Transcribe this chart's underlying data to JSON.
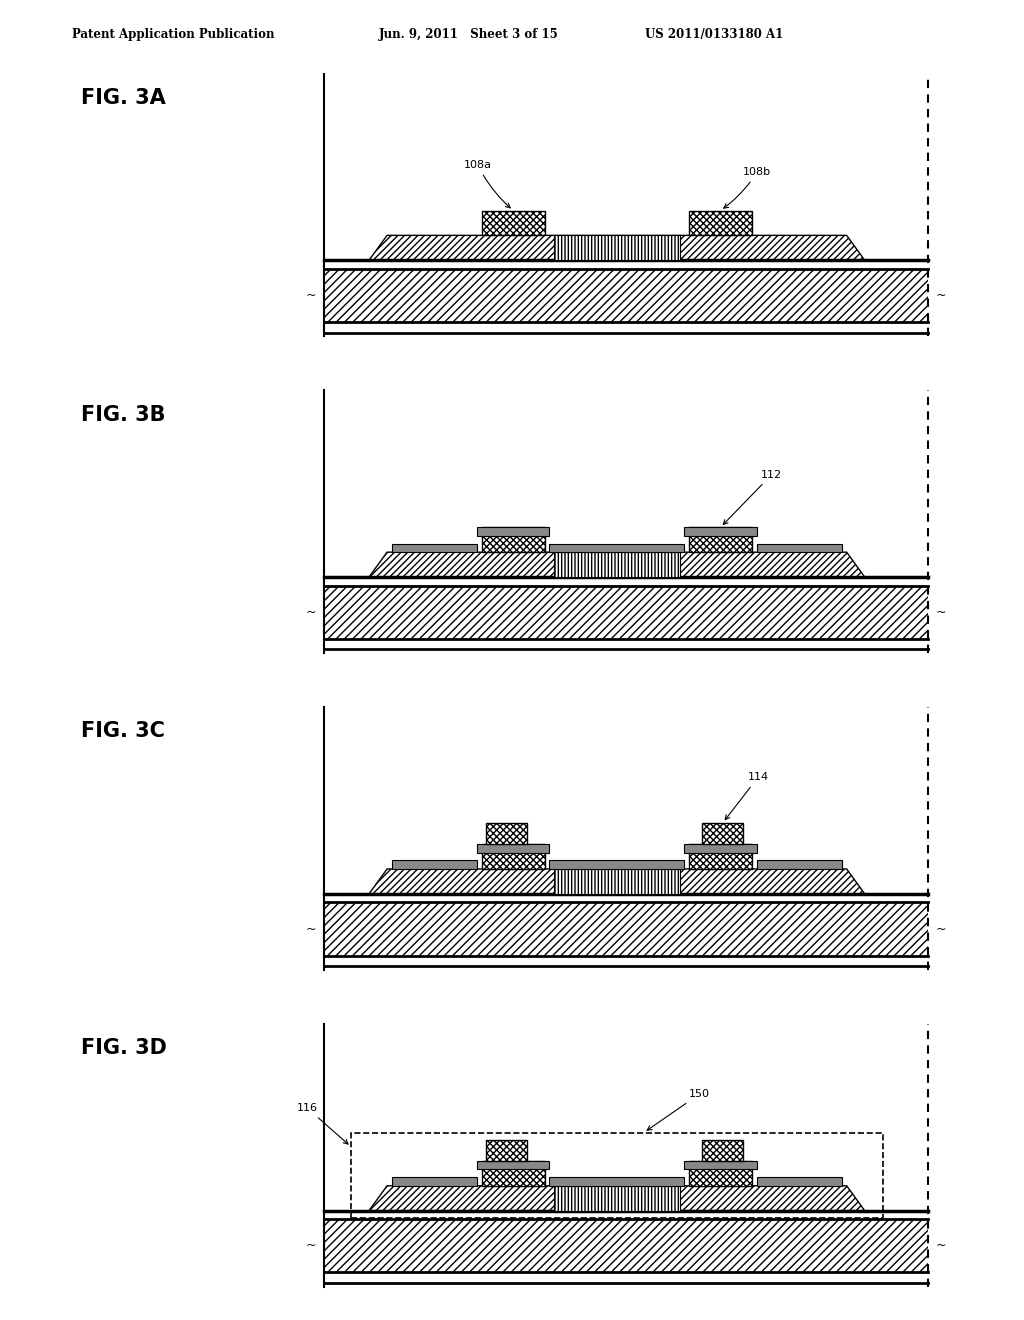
{
  "title_left": "Patent Application Publication",
  "title_mid": "Jun. 9, 2011   Sheet 3 of 15",
  "title_right": "US 2011/0133180 A1",
  "fig_labels": [
    "FIG. 3A",
    "FIG. 3B",
    "FIG. 3C",
    "FIG. 3D"
  ],
  "bg_color": "#ffffff"
}
